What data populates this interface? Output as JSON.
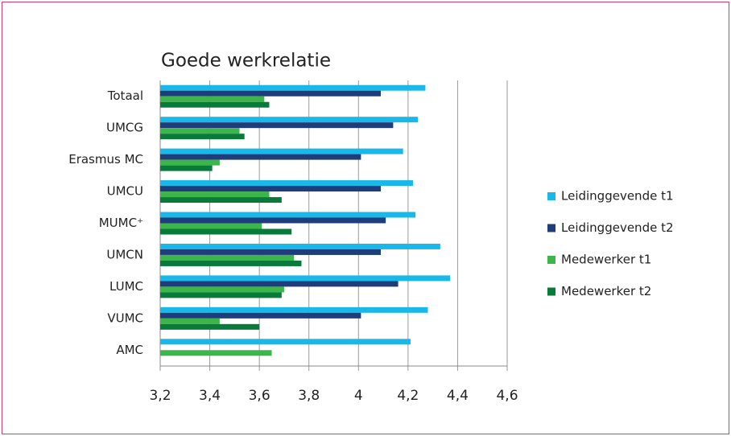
{
  "chart_data": {
    "type": "hbar",
    "title": "Goede werkrelatie",
    "categories": [
      "Totaal",
      "UMCG",
      "Erasmus MC",
      "UMCU",
      "MUMC⁺",
      "UMCN",
      "LUMC",
      "VUMC",
      "AMC"
    ],
    "series": [
      {
        "name": "Leidinggevende t1",
        "color": "#1ab8e8",
        "values": [
          4.27,
          4.24,
          4.18,
          4.22,
          4.23,
          4.33,
          4.37,
          4.28,
          4.21
        ]
      },
      {
        "name": "Leidinggevende t2",
        "color": "#1f3d7a",
        "values": [
          4.09,
          4.14,
          4.01,
          4.09,
          4.11,
          4.09,
          4.16,
          4.01,
          null
        ]
      },
      {
        "name": "Medewerker t1",
        "color": "#3cb54a",
        "values": [
          3.62,
          3.52,
          3.44,
          3.64,
          3.61,
          3.74,
          3.7,
          3.44,
          3.65
        ]
      },
      {
        "name": "Medewerker t2",
        "color": "#0a7a3b",
        "values": [
          3.64,
          3.54,
          3.41,
          3.69,
          3.73,
          3.77,
          3.69,
          3.6,
          null
        ]
      }
    ],
    "xlim": [
      3.2,
      4.6
    ],
    "xticks": [
      {
        "value": 3.2,
        "label": "3,2"
      },
      {
        "value": 3.4,
        "label": "3,4"
      },
      {
        "value": 3.6,
        "label": "3,6"
      },
      {
        "value": 3.8,
        "label": "3,8"
      },
      4,
      {
        "value": 4.2,
        "label": "4,2"
      },
      {
        "value": 4.4,
        "label": "4,4"
      },
      {
        "value": 4.6,
        "label": "4,6"
      }
    ],
    "grid": true,
    "legend": "right"
  }
}
